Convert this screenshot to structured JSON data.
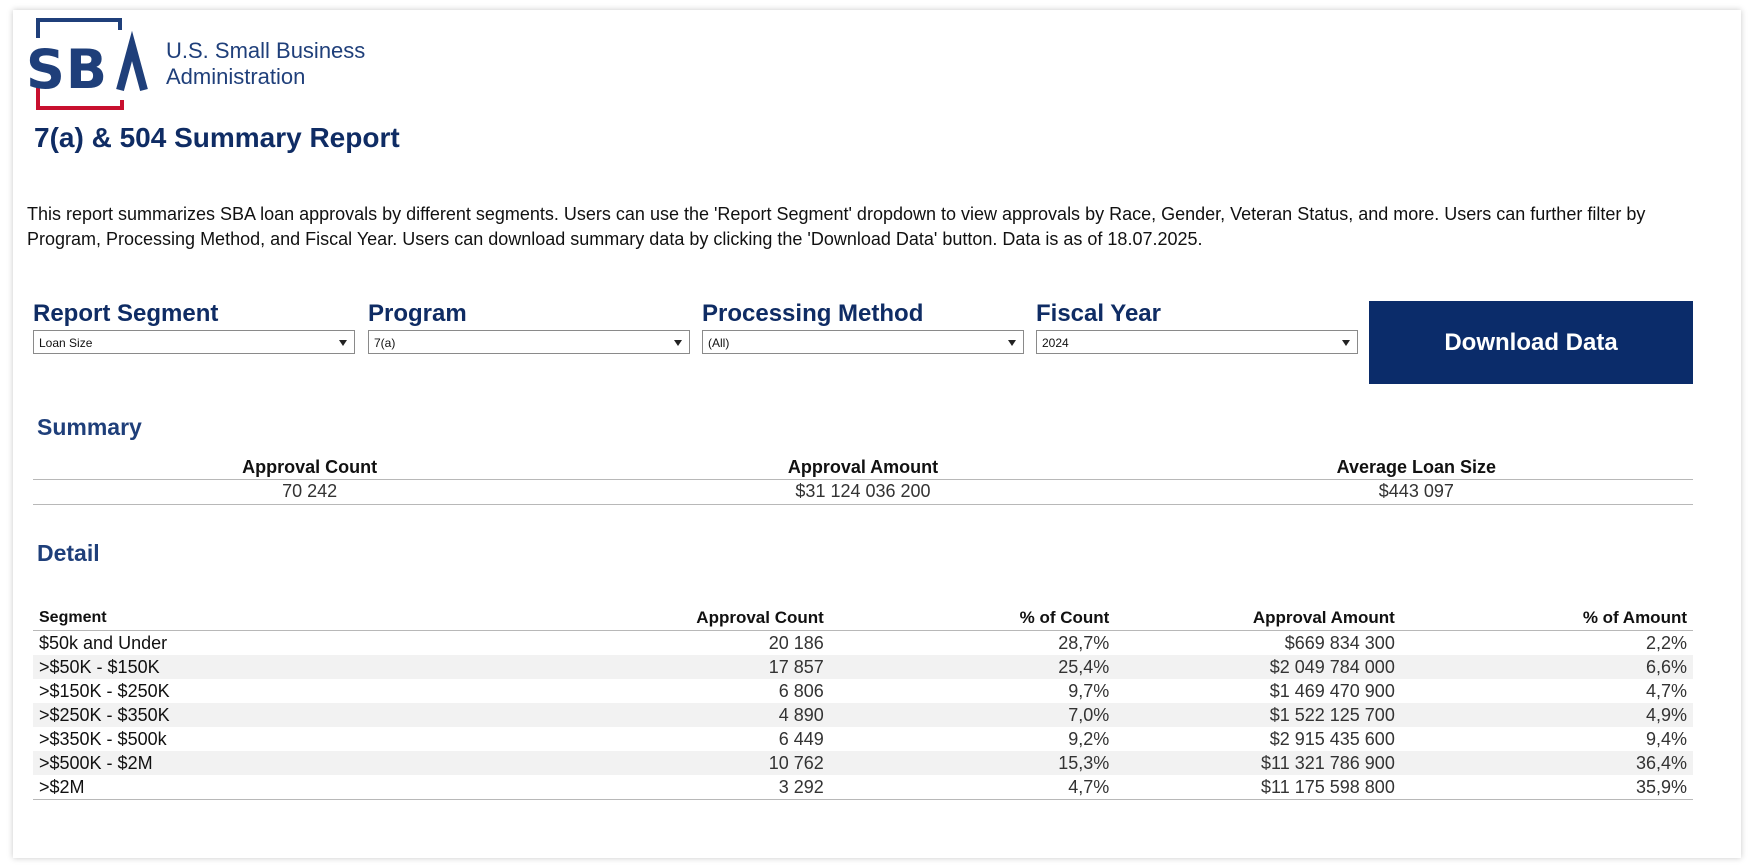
{
  "branding": {
    "logo_letters": "SBA",
    "logo_line1": "U.S. Small Business",
    "logo_line2": "Administration",
    "colors": {
      "navy": "#0f2c64",
      "red": "#c8102e",
      "button": "#0b2c6a"
    }
  },
  "header": {
    "title": "7(a) & 504 Summary Report",
    "description": "This report summarizes SBA loan approvals by different segments.  Users can use the 'Report Segment' dropdown to view approvals by Race, Gender, Veteran Status, and more.  Users can further filter by Program, Processing Method, and Fiscal Year.  Users can download summary data by clicking the 'Download Data' button.  Data is as of 18.07.2025."
  },
  "filters": [
    {
      "label": "Report Segment",
      "value": "Loan Size"
    },
    {
      "label": "Program",
      "value": "7(a)"
    },
    {
      "label": "Processing Method",
      "value": "(All)"
    },
    {
      "label": "Fiscal Year",
      "value": "2024"
    }
  ],
  "download_label": "Download Data",
  "summary": {
    "title": "Summary",
    "headers": [
      "Approval Count",
      "Approval Amount",
      "Average Loan Size"
    ],
    "values": [
      "70 242",
      "$31 124 036 200",
      "$443 097"
    ]
  },
  "detail": {
    "title": "Detail",
    "headers": [
      "Segment",
      "Approval Count",
      "% of Count",
      "Approval Amount",
      "% of Amount"
    ],
    "rows": [
      [
        "$50k and Under",
        "20 186",
        "28,7%",
        "$669 834 300",
        "2,2%"
      ],
      [
        ">$50K - $150K",
        "17 857",
        "25,4%",
        "$2 049 784 000",
        "6,6%"
      ],
      [
        ">$150K - $250K",
        "6 806",
        "9,7%",
        "$1 469 470 900",
        "4,7%"
      ],
      [
        ">$250K - $350K",
        "4 890",
        "7,0%",
        "$1 522 125 700",
        "4,9%"
      ],
      [
        ">$350K - $500k",
        "6 449",
        "9,2%",
        "$2 915 435 600",
        "9,4%"
      ],
      [
        ">$500K - $2M",
        "10 762",
        "15,3%",
        "$11 321 786 900",
        "36,4%"
      ],
      [
        ">$2M",
        "3 292",
        "4,7%",
        "$11 175 598 800",
        "35,9%"
      ]
    ]
  }
}
